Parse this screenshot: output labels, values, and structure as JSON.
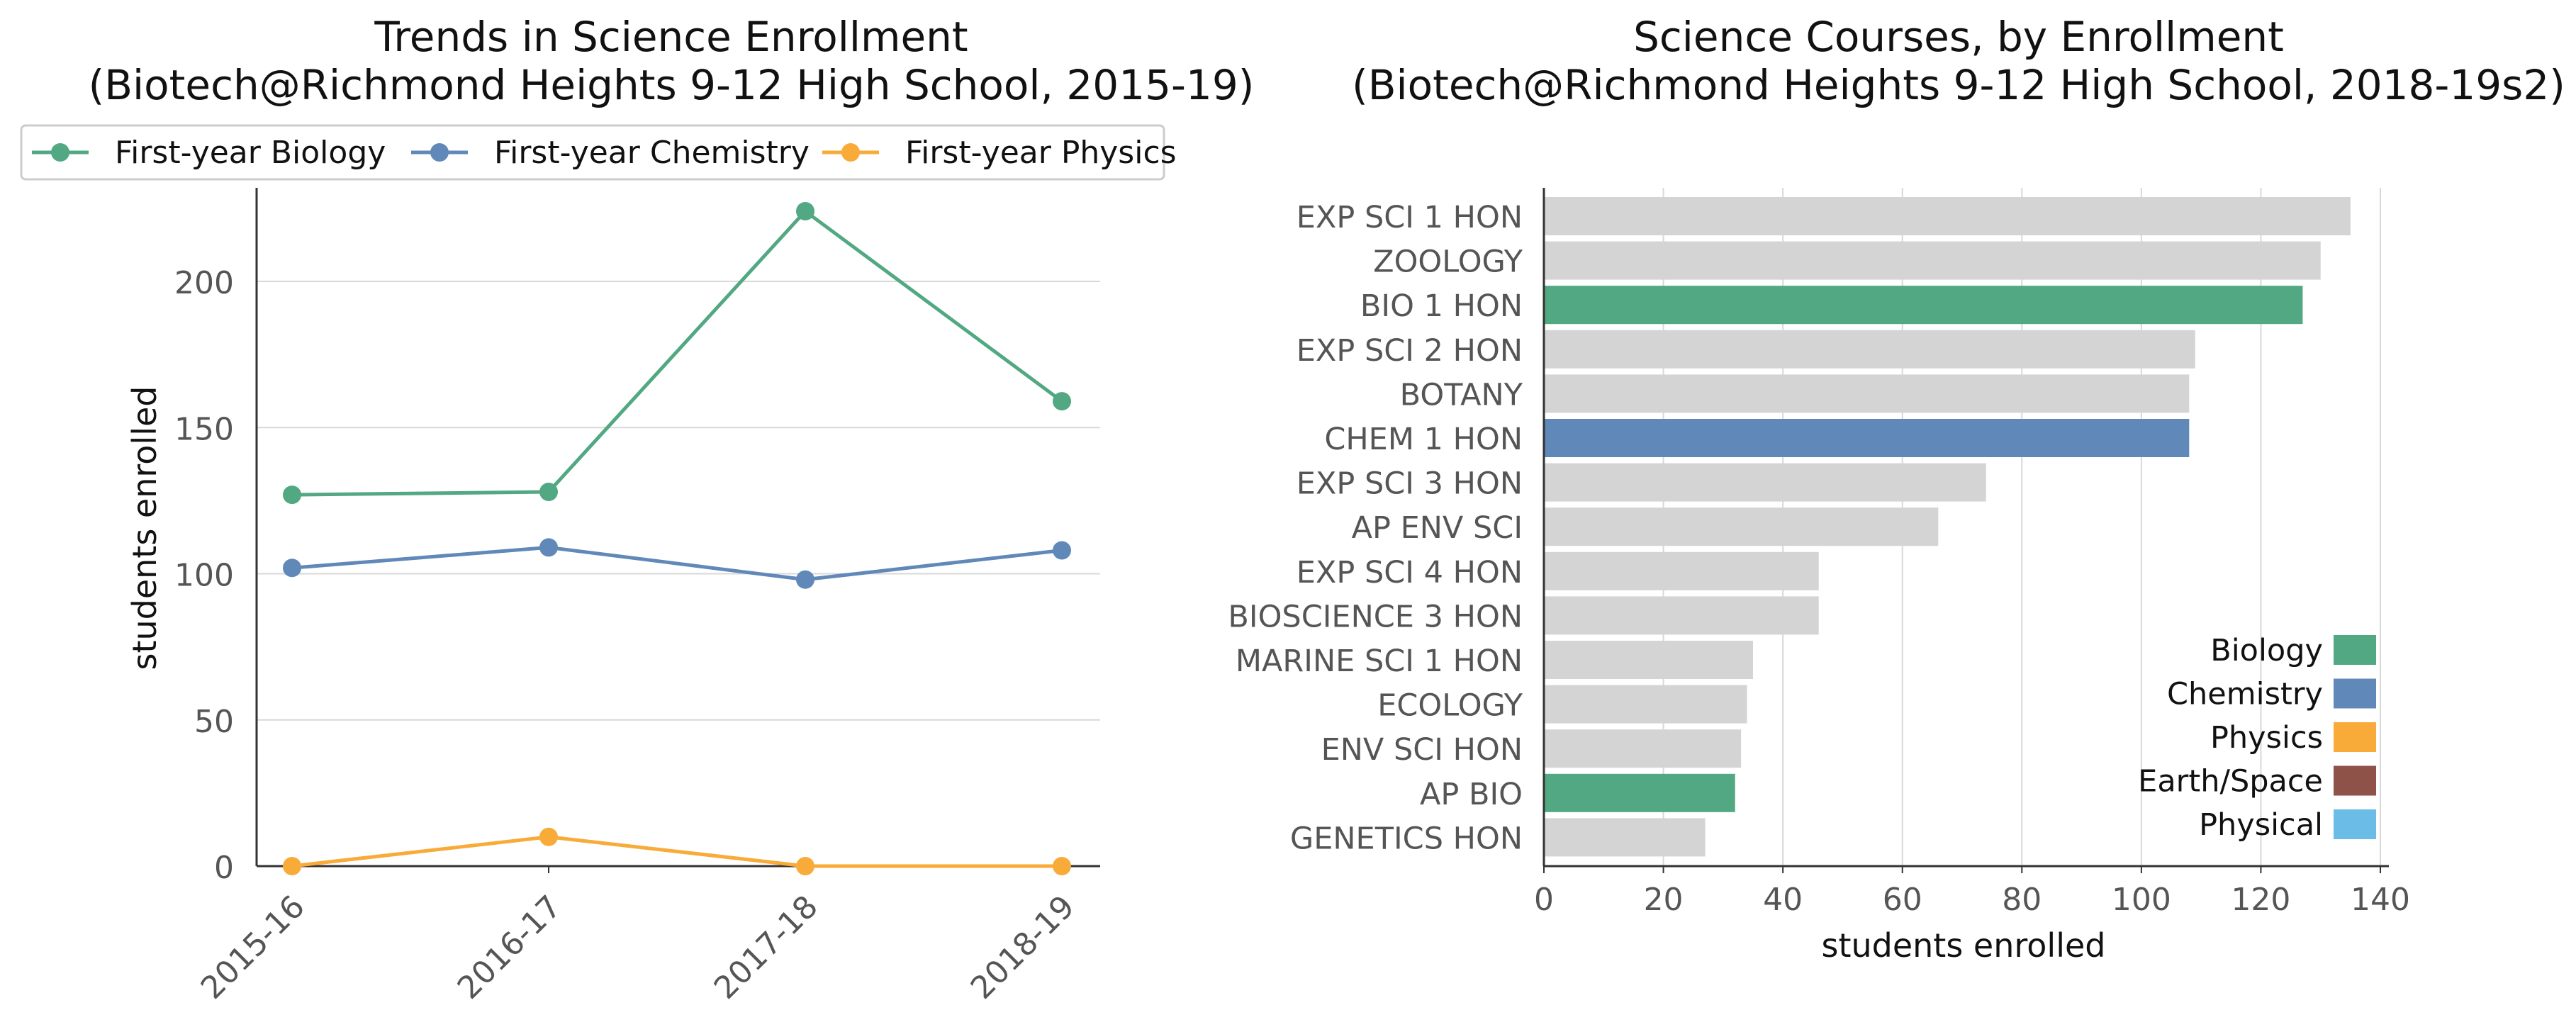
{
  "charts": [
    {
      "type": "line",
      "title_line1": "Trends in Science Enrollment",
      "title_line2": "(Biotech@Richmond Heights 9-12 High School, 2015-19)",
      "xlabel": "",
      "ylabel": "students enrolled",
      "ylim": [
        0,
        232
      ],
      "yticks": [
        0,
        50,
        100,
        150,
        200
      ],
      "grid": "horizontal",
      "legend_position": "top",
      "x": [
        "2015-16",
        "2016-17",
        "2017-18",
        "2018-19"
      ],
      "series": [
        {
          "name": "First-year Biology",
          "color": "#52a882",
          "values": [
            127,
            128,
            224,
            159
          ]
        },
        {
          "name": "First-year Chemistry",
          "color": "#6088b8",
          "values": [
            102,
            109,
            98,
            108
          ]
        },
        {
          "name": "First-year Physics",
          "color": "#f9ab3a",
          "values": [
            0,
            10,
            0,
            0
          ]
        }
      ]
    },
    {
      "type": "bar",
      "orientation": "horizontal",
      "title_line1": "Science Courses, by Enrollment",
      "title_line2": "(Biotech@Richmond Heights 9-12 High School, 2018-19s2)",
      "xlabel": "students enrolled",
      "ylabel": "",
      "xlim": [
        0,
        142
      ],
      "xticks": [
        0,
        20,
        40,
        60,
        80,
        100,
        120,
        140
      ],
      "grid": "vertical",
      "legend_position": "bottom-right",
      "categories": [
        "EXP SCI 1 HON",
        "ZOOLOGY",
        "BIO 1 HON",
        "EXP SCI 2 HON",
        "BOTANY",
        "CHEM 1 HON",
        "EXP SCI 3 HON",
        "AP ENV SCI",
        "EXP SCI 4 HON",
        "BIOSCIENCE 3 HON",
        "MARINE SCI 1 HON",
        "ECOLOGY",
        "ENV SCI HON",
        "AP BIO",
        "GENETICS HON"
      ],
      "values": [
        135,
        130,
        127,
        109,
        108,
        108,
        74,
        66,
        46,
        46,
        35,
        34,
        33,
        32,
        27
      ],
      "bar_subject": [
        "Other",
        "Other",
        "Biology",
        "Other",
        "Other",
        "Chemistry",
        "Other",
        "Other",
        "Other",
        "Other",
        "Other",
        "Other",
        "Other",
        "Biology",
        "Other"
      ],
      "subject_colors": {
        "Biology": "#52a882",
        "Chemistry": "#6088b8",
        "Physics": "#f9ab3a",
        "Earth/Space": "#8f5248",
        "Physical": "#6bbde8",
        "Other": "#d4d4d4"
      },
      "legend": [
        {
          "label": "Biology",
          "color": "#52a882"
        },
        {
          "label": "Chemistry",
          "color": "#6088b8"
        },
        {
          "label": "Physics",
          "color": "#f9ab3a"
        },
        {
          "label": "Earth/Space",
          "color": "#8f5248"
        },
        {
          "label": "Physical",
          "color": "#6bbde8"
        }
      ]
    }
  ]
}
